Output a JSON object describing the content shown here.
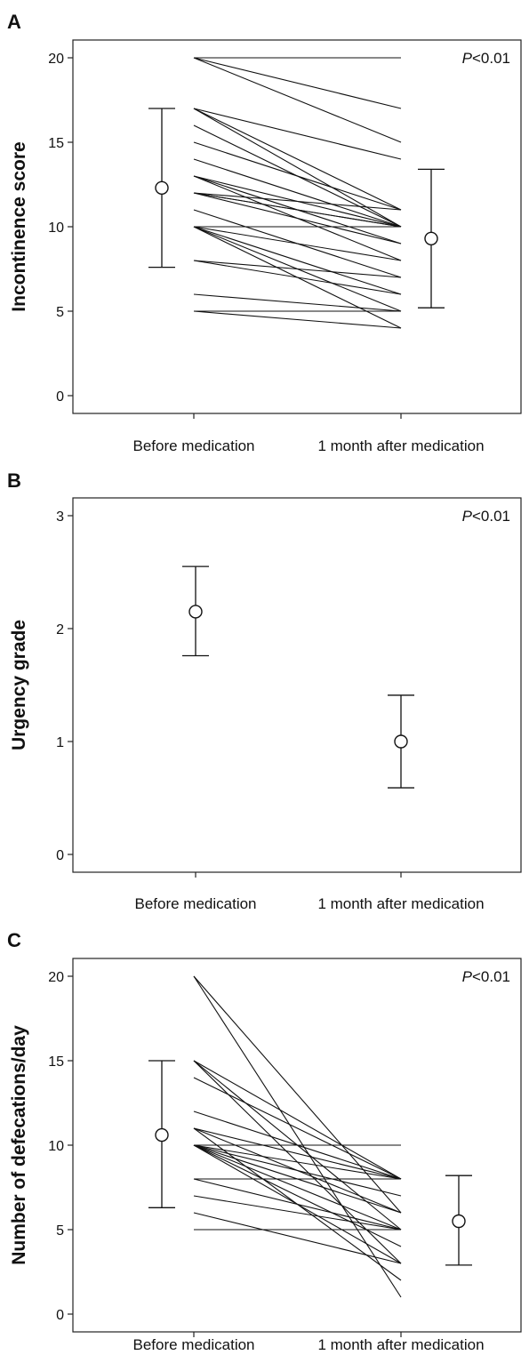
{
  "chart_data": [
    {
      "panel": "A",
      "type": "line",
      "ylabel": "Incontinence score",
      "p_value": {
        "prefix": "P",
        "rest": "<0.01"
      },
      "categories": [
        "Before medication",
        "1 month after medication"
      ],
      "ylim": [
        0,
        20
      ],
      "yticks": [
        0,
        5,
        10,
        15,
        20
      ],
      "pairs": [
        [
          20,
          20
        ],
        [
          20,
          17
        ],
        [
          20,
          15
        ],
        [
          17,
          14
        ],
        [
          17,
          11
        ],
        [
          17,
          10
        ],
        [
          16,
          10
        ],
        [
          15,
          11
        ],
        [
          14,
          10
        ],
        [
          13,
          10
        ],
        [
          13,
          9
        ],
        [
          13,
          8
        ],
        [
          12,
          11
        ],
        [
          12,
          10
        ],
        [
          12,
          9
        ],
        [
          12,
          10
        ],
        [
          11,
          7
        ],
        [
          10,
          10
        ],
        [
          10,
          8
        ],
        [
          10,
          6
        ],
        [
          10,
          5
        ],
        [
          10,
          4
        ],
        [
          8,
          7
        ],
        [
          8,
          6
        ],
        [
          6,
          5
        ],
        [
          5,
          5
        ],
        [
          5,
          4
        ]
      ],
      "summary": [
        {
          "mean": 12.3,
          "low": 7.6,
          "high": 17
        },
        {
          "mean": 9.3,
          "low": 5.2,
          "high": 13.4
        }
      ]
    },
    {
      "panel": "B",
      "type": "scatter",
      "ylabel": "Urgency grade",
      "p_value": {
        "prefix": "P",
        "rest": "<0.01"
      },
      "categories": [
        "Before medication",
        "1 month after medication"
      ],
      "ylim": [
        0,
        3
      ],
      "yticks": [
        0,
        1,
        2,
        3
      ],
      "pairs": [],
      "summary": [
        {
          "mean": 2.15,
          "low": 1.76,
          "high": 2.55
        },
        {
          "mean": 1.0,
          "low": 0.59,
          "high": 1.41
        }
      ]
    },
    {
      "panel": "C",
      "type": "line",
      "ylabel": "Number of defecations/day",
      "p_value": {
        "prefix": "P",
        "rest": "<0.01"
      },
      "categories": [
        "Before medication",
        "1 month after medication"
      ],
      "ylim": [
        0,
        20
      ],
      "yticks": [
        0,
        5,
        10,
        15,
        20
      ],
      "pairs": [
        [
          20,
          6
        ],
        [
          20,
          1
        ],
        [
          15,
          8
        ],
        [
          15,
          5
        ],
        [
          15,
          3
        ],
        [
          14,
          8
        ],
        [
          12,
          8
        ],
        [
          11,
          8
        ],
        [
          11,
          6
        ],
        [
          11,
          2
        ],
        [
          10,
          10
        ],
        [
          10,
          8
        ],
        [
          10,
          7
        ],
        [
          10,
          6
        ],
        [
          10,
          5
        ],
        [
          10,
          4
        ],
        [
          10,
          3
        ],
        [
          8,
          8
        ],
        [
          8,
          5
        ],
        [
          7,
          5
        ],
        [
          6,
          3
        ],
        [
          5,
          5
        ]
      ],
      "summary": [
        {
          "mean": 10.6,
          "low": 6.3,
          "high": 15
        },
        {
          "mean": 5.5,
          "low": 2.9,
          "high": 8.2
        }
      ]
    }
  ]
}
